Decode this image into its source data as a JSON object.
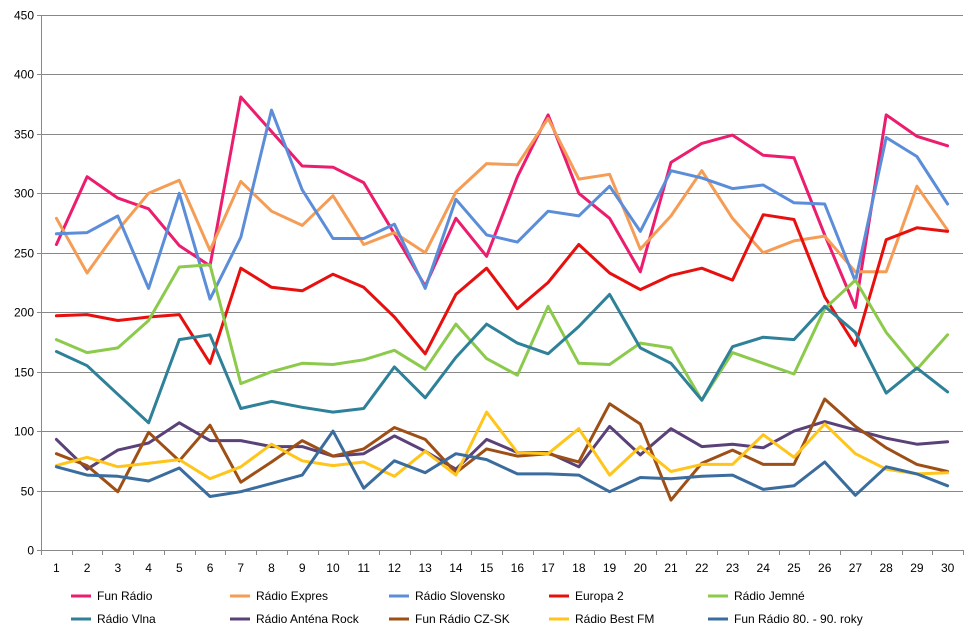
{
  "chart_data": {
    "type": "line",
    "title": "",
    "xlabel": "",
    "ylabel": "",
    "ylim": [
      0,
      450
    ],
    "yticks": [
      0,
      50,
      100,
      150,
      200,
      250,
      300,
      350,
      400,
      450
    ],
    "grid": true,
    "legend_position": "bottom",
    "categories": [
      "1",
      "2",
      "3",
      "4",
      "5",
      "6",
      "7",
      "8",
      "9",
      "10",
      "11",
      "12",
      "13",
      "14",
      "15",
      "16",
      "17",
      "18",
      "19",
      "20",
      "21",
      "22",
      "23",
      "24",
      "25",
      "26",
      "27",
      "28",
      "29",
      "30"
    ],
    "series": [
      {
        "name": "Fun Rádio",
        "color": "#EC1C6E",
        "values": [
          257,
          314,
          296,
          287,
          256,
          239,
          381,
          352,
          323,
          322,
          309,
          266,
          222,
          279,
          247,
          314,
          366,
          300,
          279,
          234,
          326,
          342,
          349,
          332,
          330,
          265,
          204,
          366,
          348,
          340
        ]
      },
      {
        "name": "Rádio Expres",
        "color": "#F59D56",
        "values": [
          279,
          233,
          269,
          300,
          311,
          252,
          310,
          285,
          273,
          298,
          257,
          267,
          250,
          301,
          325,
          324,
          363,
          312,
          316,
          253,
          281,
          319,
          279,
          250,
          260,
          264,
          234,
          234,
          306,
          269
        ]
      },
      {
        "name": "Rádio Slovensko",
        "color": "#5B8DD9",
        "values": [
          266,
          267,
          281,
          220,
          300,
          211,
          263,
          370,
          303,
          262,
          262,
          274,
          220,
          295,
          265,
          259,
          285,
          281,
          306,
          268,
          319,
          313,
          304,
          307,
          292,
          291,
          226,
          347,
          331,
          291
        ]
      },
      {
        "name": "Europa 2",
        "color": "#E8100F",
        "values": [
          197,
          198,
          193,
          196,
          198,
          157,
          237,
          221,
          218,
          232,
          221,
          196,
          165,
          215,
          237,
          203,
          225,
          257,
          233,
          219,
          231,
          237,
          227,
          282,
          278,
          213,
          172,
          261,
          271,
          268
        ]
      },
      {
        "name": "Rádio Jemné",
        "color": "#8CCA4C",
        "values": [
          177,
          166,
          170,
          193,
          238,
          240,
          140,
          150,
          157,
          156,
          160,
          168,
          152,
          190,
          161,
          147,
          205,
          157,
          156,
          174,
          170,
          126,
          166,
          157,
          148,
          203,
          227,
          183,
          152,
          181
        ]
      },
      {
        "name": "Rádio Vlna",
        "color": "#2E8198",
        "values": [
          167,
          155,
          131,
          107,
          177,
          181,
          119,
          125,
          120,
          116,
          119,
          154,
          128,
          162,
          190,
          174,
          165,
          188,
          215,
          170,
          157,
          126,
          171,
          179,
          177,
          205,
          183,
          132,
          153,
          133
        ]
      },
      {
        "name": "Rádio Anténa Rock",
        "color": "#5A4177",
        "values": [
          93,
          68,
          84,
          90,
          107,
          92,
          92,
          87,
          87,
          79,
          81,
          96,
          83,
          68,
          93,
          82,
          82,
          70,
          104,
          80,
          102,
          87,
          89,
          86,
          100,
          108,
          101,
          94,
          89,
          91
        ]
      },
      {
        "name": "Fun Rádio CZ-SK",
        "color": "#9E4F16",
        "values": [
          81,
          71,
          49,
          99,
          75,
          105,
          57,
          74,
          92,
          79,
          85,
          103,
          93,
          65,
          85,
          79,
          81,
          74,
          123,
          106,
          42,
          73,
          84,
          72,
          72,
          127,
          104,
          86,
          72,
          66
        ]
      },
      {
        "name": "Rádio Best FM",
        "color": "#FFC51A",
        "values": [
          71,
          78,
          70,
          73,
          76,
          60,
          70,
          89,
          75,
          71,
          74,
          62,
          83,
          63,
          116,
          82,
          81,
          102,
          63,
          87,
          66,
          72,
          72,
          97,
          78,
          106,
          81,
          68,
          64,
          65
        ]
      },
      {
        "name": "Fun Rádio 80. - 90. roky",
        "color": "#3A6C9E",
        "values": [
          70,
          63,
          62,
          58,
          69,
          45,
          49,
          56,
          63,
          100,
          52,
          75,
          65,
          81,
          76,
          64,
          64,
          63,
          49,
          61,
          60,
          62,
          63,
          51,
          54,
          74,
          46,
          70,
          64,
          54
        ]
      }
    ]
  }
}
